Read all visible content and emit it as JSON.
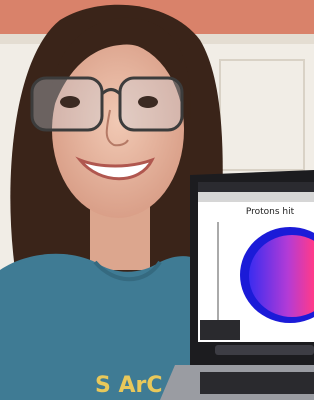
{
  "screen": {
    "plot_title": "Protons hit"
  },
  "shirt": {
    "print": "S ArC"
  }
}
